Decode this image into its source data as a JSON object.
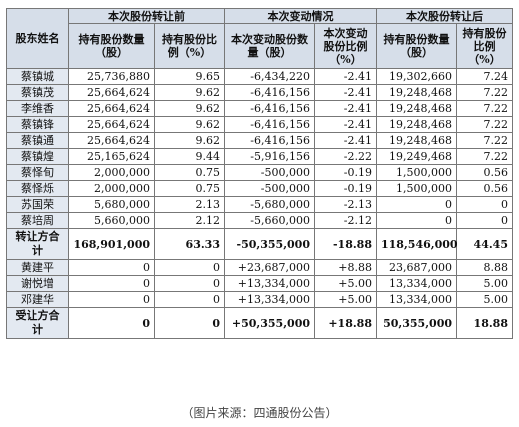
{
  "table": {
    "header_groups": {
      "shareholder": "股东姓名",
      "before": "本次股份转让前",
      "change": "本次变动情况",
      "after": "本次股份转让后"
    },
    "sub_headers": {
      "shares_held": "持有股份数量（股）",
      "pct_held": "持有股份比例（%）",
      "shares_change": "本次变动股份数量（股）",
      "pct_change": "本次变动股份比例（%）",
      "shares_after": "持有股份数量（股）",
      "pct_after": "持有股份比例（%）"
    },
    "rows": [
      {
        "name": "蔡镇城",
        "shares_before": "25,736,880",
        "pct_before": "9.65",
        "shares_change": "-6,434,220",
        "pct_change": "-2.41",
        "shares_after": "19,302,660",
        "pct_after": "7.24"
      },
      {
        "name": "蔡镇茂",
        "shares_before": "25,664,624",
        "pct_before": "9.62",
        "shares_change": "-6,416,156",
        "pct_change": "-2.41",
        "shares_after": "19,248,468",
        "pct_after": "7.22"
      },
      {
        "name": "李维香",
        "shares_before": "25,664,624",
        "pct_before": "9.62",
        "shares_change": "-6,416,156",
        "pct_change": "-2.41",
        "shares_after": "19,248,468",
        "pct_after": "7.22"
      },
      {
        "name": "蔡镇锋",
        "shares_before": "25,664,624",
        "pct_before": "9.62",
        "shares_change": "-6,416,156",
        "pct_change": "-2.41",
        "shares_after": "19,248,468",
        "pct_after": "7.22"
      },
      {
        "name": "蔡镇通",
        "shares_before": "25,664,624",
        "pct_before": "9.62",
        "shares_change": "-6,416,156",
        "pct_change": "-2.41",
        "shares_after": "19,248,468",
        "pct_after": "7.22"
      },
      {
        "name": "蔡镇煌",
        "shares_before": "25,165,624",
        "pct_before": "9.44",
        "shares_change": "-5,916,156",
        "pct_change": "-2.22",
        "shares_after": "19,249,468",
        "pct_after": "7.22"
      },
      {
        "name": "蔡怿旬",
        "shares_before": "2,000,000",
        "pct_before": "0.75",
        "shares_change": "-500,000",
        "pct_change": "-0.19",
        "shares_after": "1,500,000",
        "pct_after": "0.56"
      },
      {
        "name": "蔡怿烁",
        "shares_before": "2,000,000",
        "pct_before": "0.75",
        "shares_change": "-500,000",
        "pct_change": "-0.19",
        "shares_after": "1,500,000",
        "pct_after": "0.56"
      },
      {
        "name": "苏国荣",
        "shares_before": "5,680,000",
        "pct_before": "2.13",
        "shares_change": "-5,680,000",
        "pct_change": "-2.13",
        "shares_after": "0",
        "pct_after": "0"
      },
      {
        "name": "蔡培周",
        "shares_before": "5,660,000",
        "pct_before": "2.12",
        "shares_change": "-5,660,000",
        "pct_change": "-2.12",
        "shares_after": "0",
        "pct_after": "0"
      },
      {
        "name": "转让方合计",
        "total": true,
        "shares_before": "168,901,000",
        "pct_before": "63.33",
        "shares_change": "-50,355,000",
        "pct_change": "-18.88",
        "shares_after": "118,546,000",
        "pct_after": "44.45"
      },
      {
        "name": "黄建平",
        "shares_before": "0",
        "pct_before": "0",
        "shares_change": "+23,687,000",
        "pct_change": "+8.88",
        "shares_after": "23,687,000",
        "pct_after": "8.88"
      },
      {
        "name": "谢悦增",
        "shares_before": "0",
        "pct_before": "0",
        "shares_change": "+13,334,000",
        "pct_change": "+5.00",
        "shares_after": "13,334,000",
        "pct_after": "5.00"
      },
      {
        "name": "邓建华",
        "shares_before": "0",
        "pct_before": "0",
        "shares_change": "+13,334,000",
        "pct_change": "+5.00",
        "shares_after": "13,334,000",
        "pct_after": "5.00"
      },
      {
        "name": "受让方合计",
        "total": true,
        "shares_before": "0",
        "pct_before": "0",
        "shares_change": "+50,355,000",
        "pct_change": "+18.88",
        "shares_after": "50,355,000",
        "pct_after": "18.88"
      }
    ]
  },
  "caption": "（图片来源：四通股份公告）",
  "colors": {
    "header_bg": "#d6dee9",
    "name_bg": "#e3e9f1",
    "border": "#777777"
  }
}
